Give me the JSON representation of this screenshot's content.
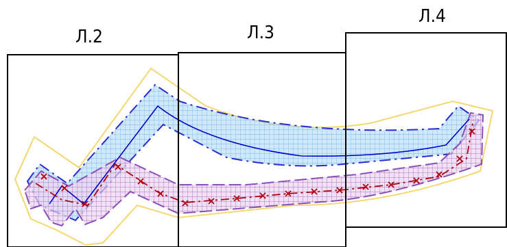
{
  "sheets": [
    {
      "id": "sheet-2",
      "label": "Л.2"
    },
    {
      "id": "sheet-3",
      "label": "Л.3"
    },
    {
      "id": "sheet-4",
      "label": "Л.4"
    }
  ],
  "colors": {
    "sheet_border": "#000000",
    "outer_boundary": "#f5d76e",
    "blue_zone_fill": "#a8d4f5",
    "blue_zone_grid": "#5aaeea",
    "blue_zone_border": "#2a2ad0",
    "blue_centerline": "#0000cc",
    "purple_zone_fill": "#e8d4ee",
    "purple_zone_grid": "#9b4fb0",
    "purple_zone_border": "#8a4fb8",
    "red_line": "#b00010"
  }
}
